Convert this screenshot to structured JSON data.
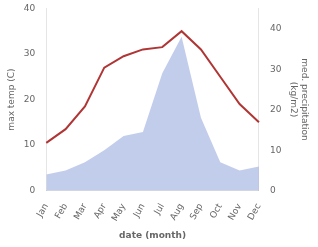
{
  "chart_data": {
    "type": "line",
    "xlabel": "date (month)",
    "ylabel": "max temp (C)",
    "y2label": "med. precipitation\n(kg/m2)",
    "categories": [
      "Jan",
      "Feb",
      "Mar",
      "Apr",
      "May",
      "Jun",
      "Jul",
      "Aug",
      "Sep",
      "Oct",
      "Nov",
      "Dec"
    ],
    "series": [
      {
        "type": "area",
        "axis": "y2",
        "color": "#99aadd",
        "values": [
          4.0,
          5.0,
          7.0,
          10.0,
          13.5,
          14.5,
          29.0,
          38.0,
          18.0,
          7.0,
          5.0,
          6.0
        ]
      },
      {
        "type": "line",
        "color": "#b03535",
        "values": [
          10.5,
          13.5,
          18.5,
          27.0,
          29.5,
          31.0,
          31.5,
          35.0,
          31.0,
          25.0,
          19.0,
          15.0
        ]
      }
    ],
    "ylim": [
      0,
      40
    ],
    "yticks": [
      0,
      10,
      20,
      30,
      40
    ],
    "y2lim": [
      0,
      45
    ],
    "y2ticks": [
      0,
      10,
      20,
      30,
      40
    ],
    "grid": false
  }
}
